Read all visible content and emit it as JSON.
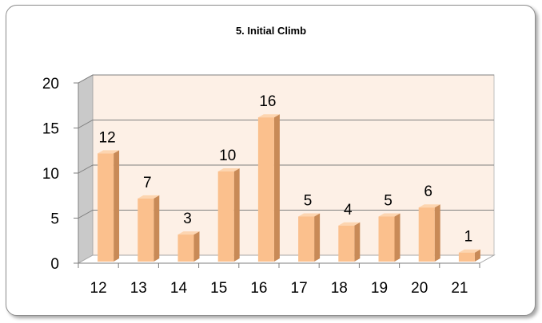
{
  "chart_data": {
    "type": "bar",
    "title": "5. Initial Climb",
    "categories": [
      "12",
      "13",
      "14",
      "15",
      "16",
      "17",
      "18",
      "19",
      "20",
      "21"
    ],
    "values": [
      12,
      7,
      3,
      10,
      16,
      5,
      4,
      5,
      6,
      1
    ],
    "ylim": [
      0,
      20
    ],
    "yticks": [
      0,
      5,
      10,
      15,
      20
    ],
    "xlabel": "",
    "ylabel": "",
    "grid": true,
    "legend": "none",
    "data_labels": true,
    "style": "3d-column",
    "colors": {
      "bar_front": "#fbc08d",
      "bar_side": "#c88a57",
      "bar_top": "#fdd5b0",
      "plot_back": "#fdf0e6",
      "side_wall": "#c9c9c9",
      "floor": "#ffffff"
    }
  }
}
